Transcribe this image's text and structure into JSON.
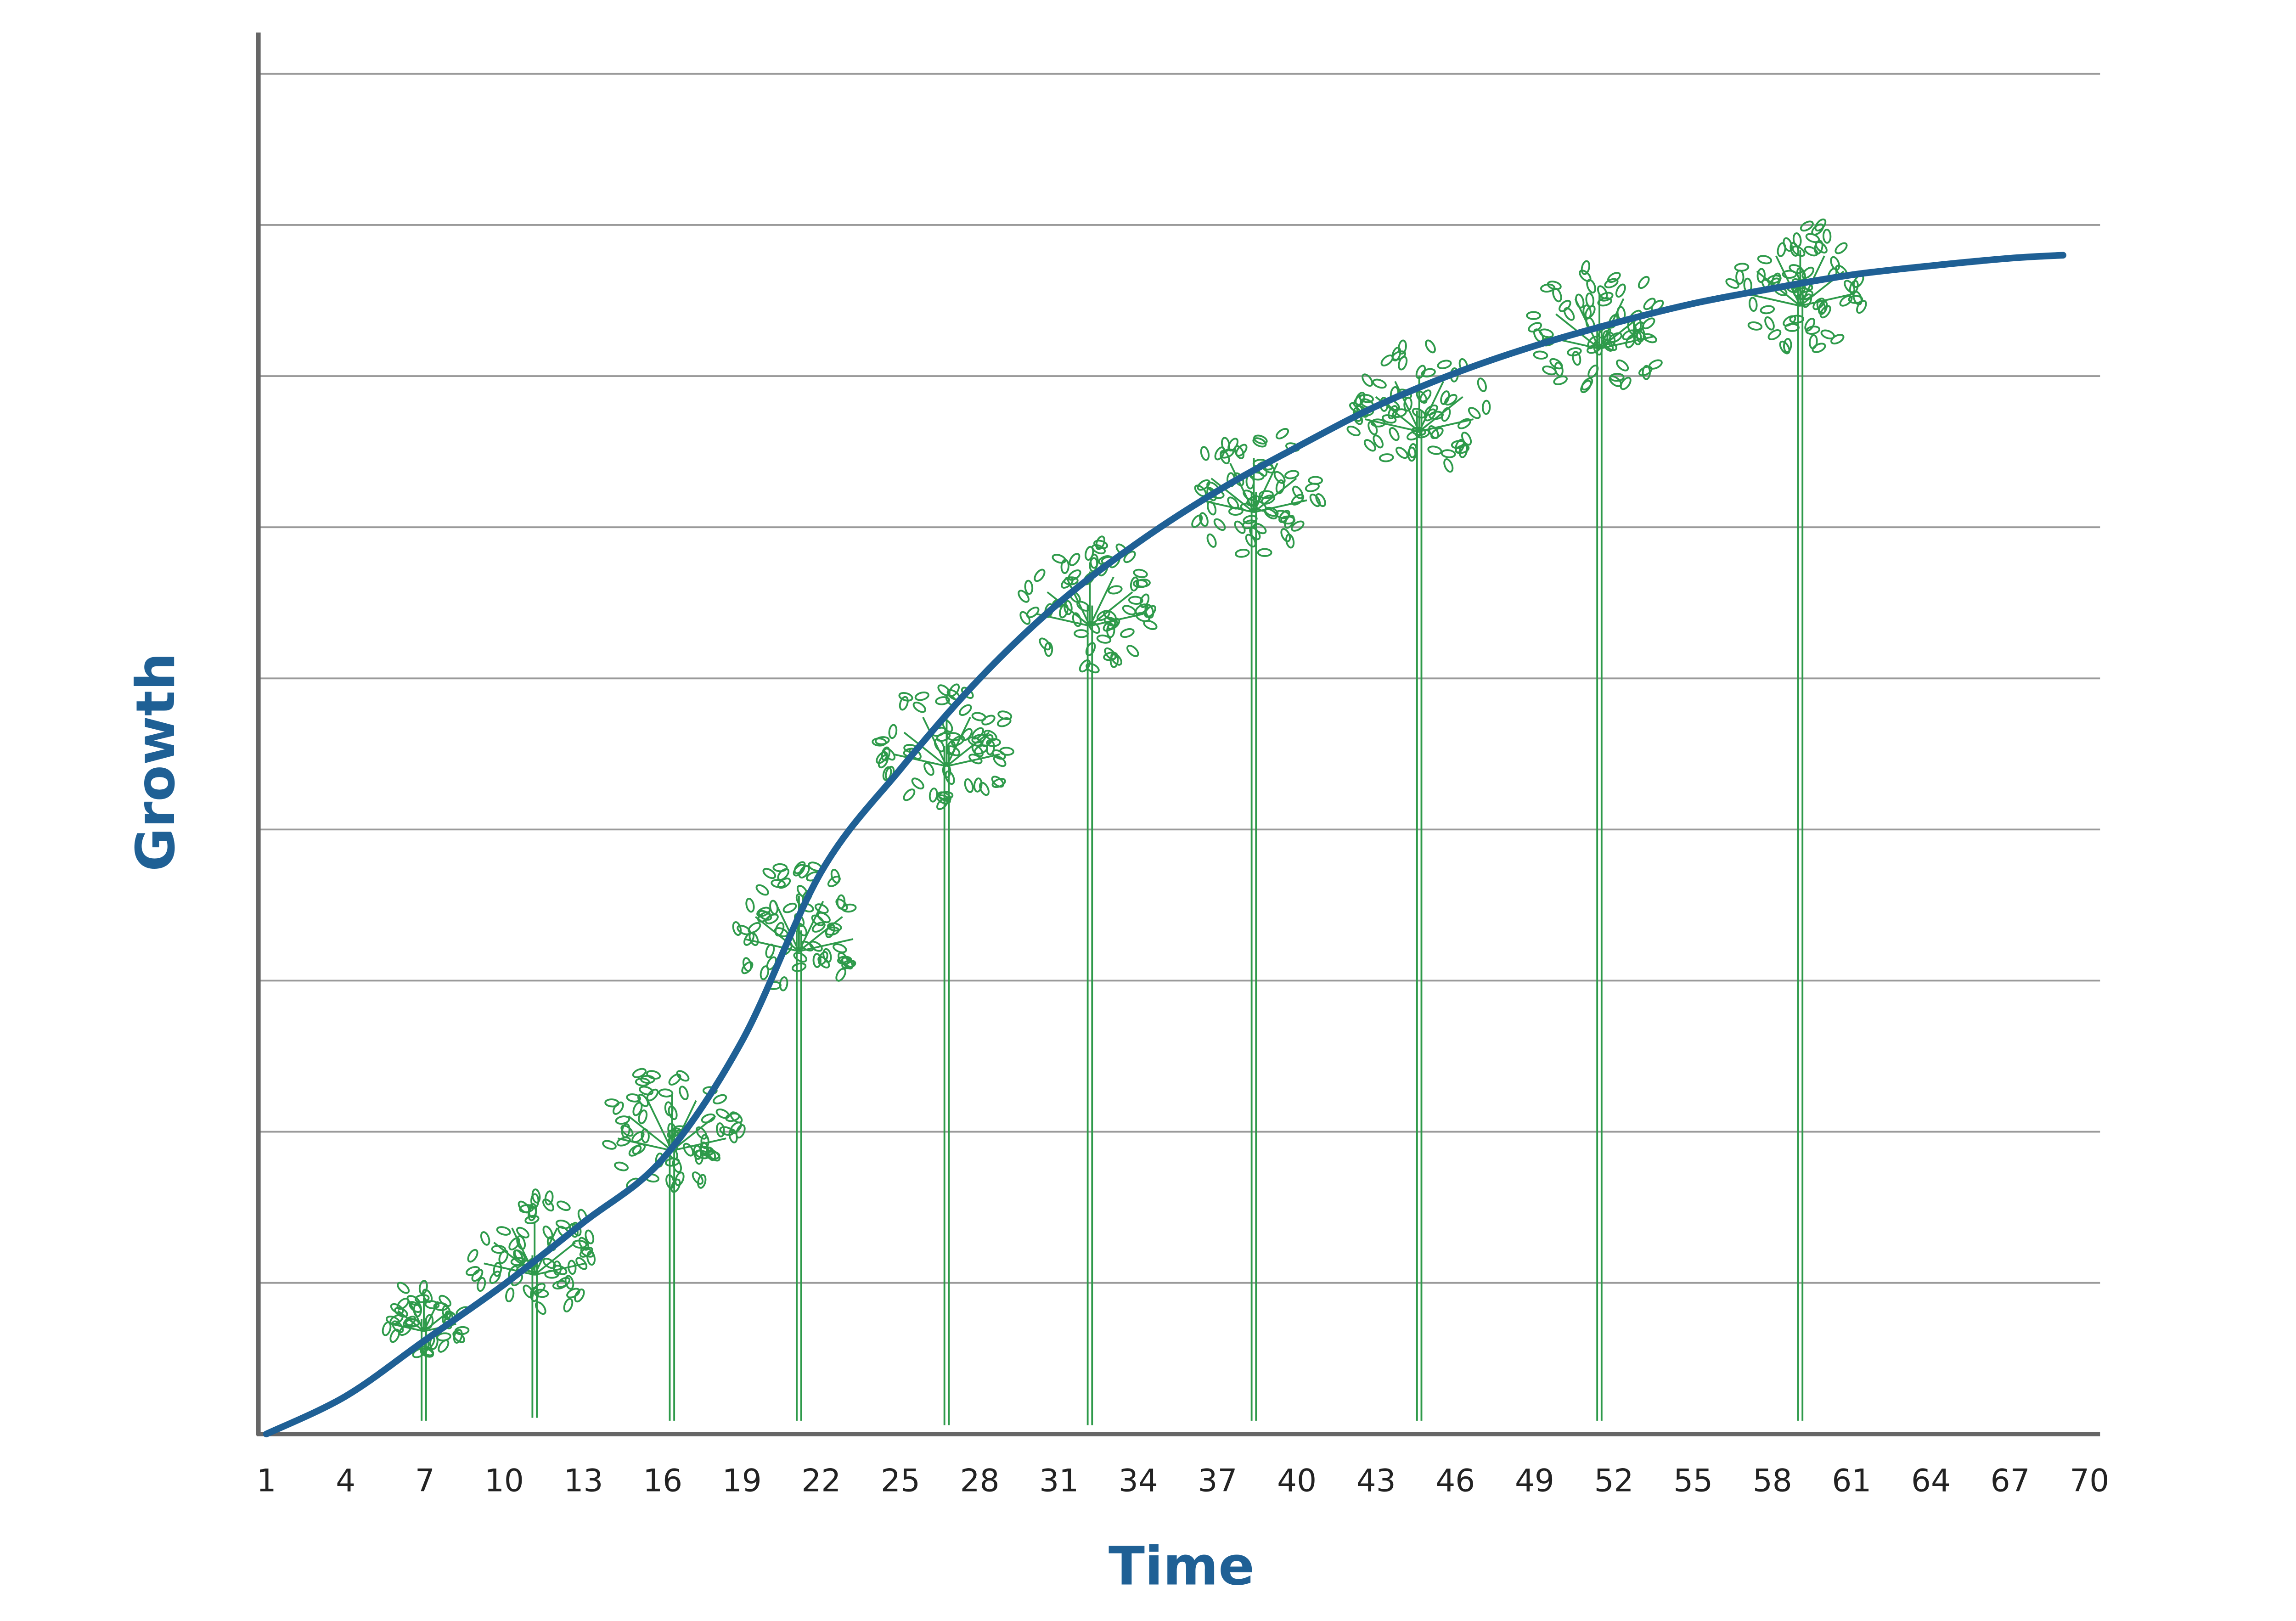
{
  "chart_data": {
    "type": "line",
    "x_label": "Time",
    "y_label": "Growth",
    "x": [
      1,
      4,
      7,
      10,
      13,
      16,
      19,
      22,
      25,
      28,
      31,
      34,
      37,
      40,
      43,
      46,
      49,
      52,
      55,
      58,
      61,
      64,
      67,
      69
    ],
    "series": [
      {
        "color": "#1f6095",
        "values": [
          0,
          0.25,
          0.62,
          0.99,
          1.4,
          1.82,
          2.6,
          3.72,
          4.4,
          5.0,
          5.5,
          5.9,
          6.24,
          6.53,
          6.8,
          7.02,
          7.2,
          7.35,
          7.48,
          7.58,
          7.67,
          7.73,
          7.78,
          7.8
        ]
      }
    ],
    "xlim": [
      0.7,
      70.4
    ],
    "xticks": [
      1,
      4,
      7,
      10,
      13,
      16,
      19,
      22,
      25,
      28,
      31,
      34,
      37,
      40,
      43,
      46,
      49,
      52,
      55,
      58,
      61,
      64,
      67,
      70
    ],
    "ylim": [
      0,
      9
    ],
    "yticks": [
      1,
      2,
      3,
      4,
      5,
      6,
      7,
      8,
      9
    ],
    "ytick_labels": false,
    "grid": true,
    "axis_label_color": "#1f6095",
    "tree_color": "#2e9a4a"
  }
}
